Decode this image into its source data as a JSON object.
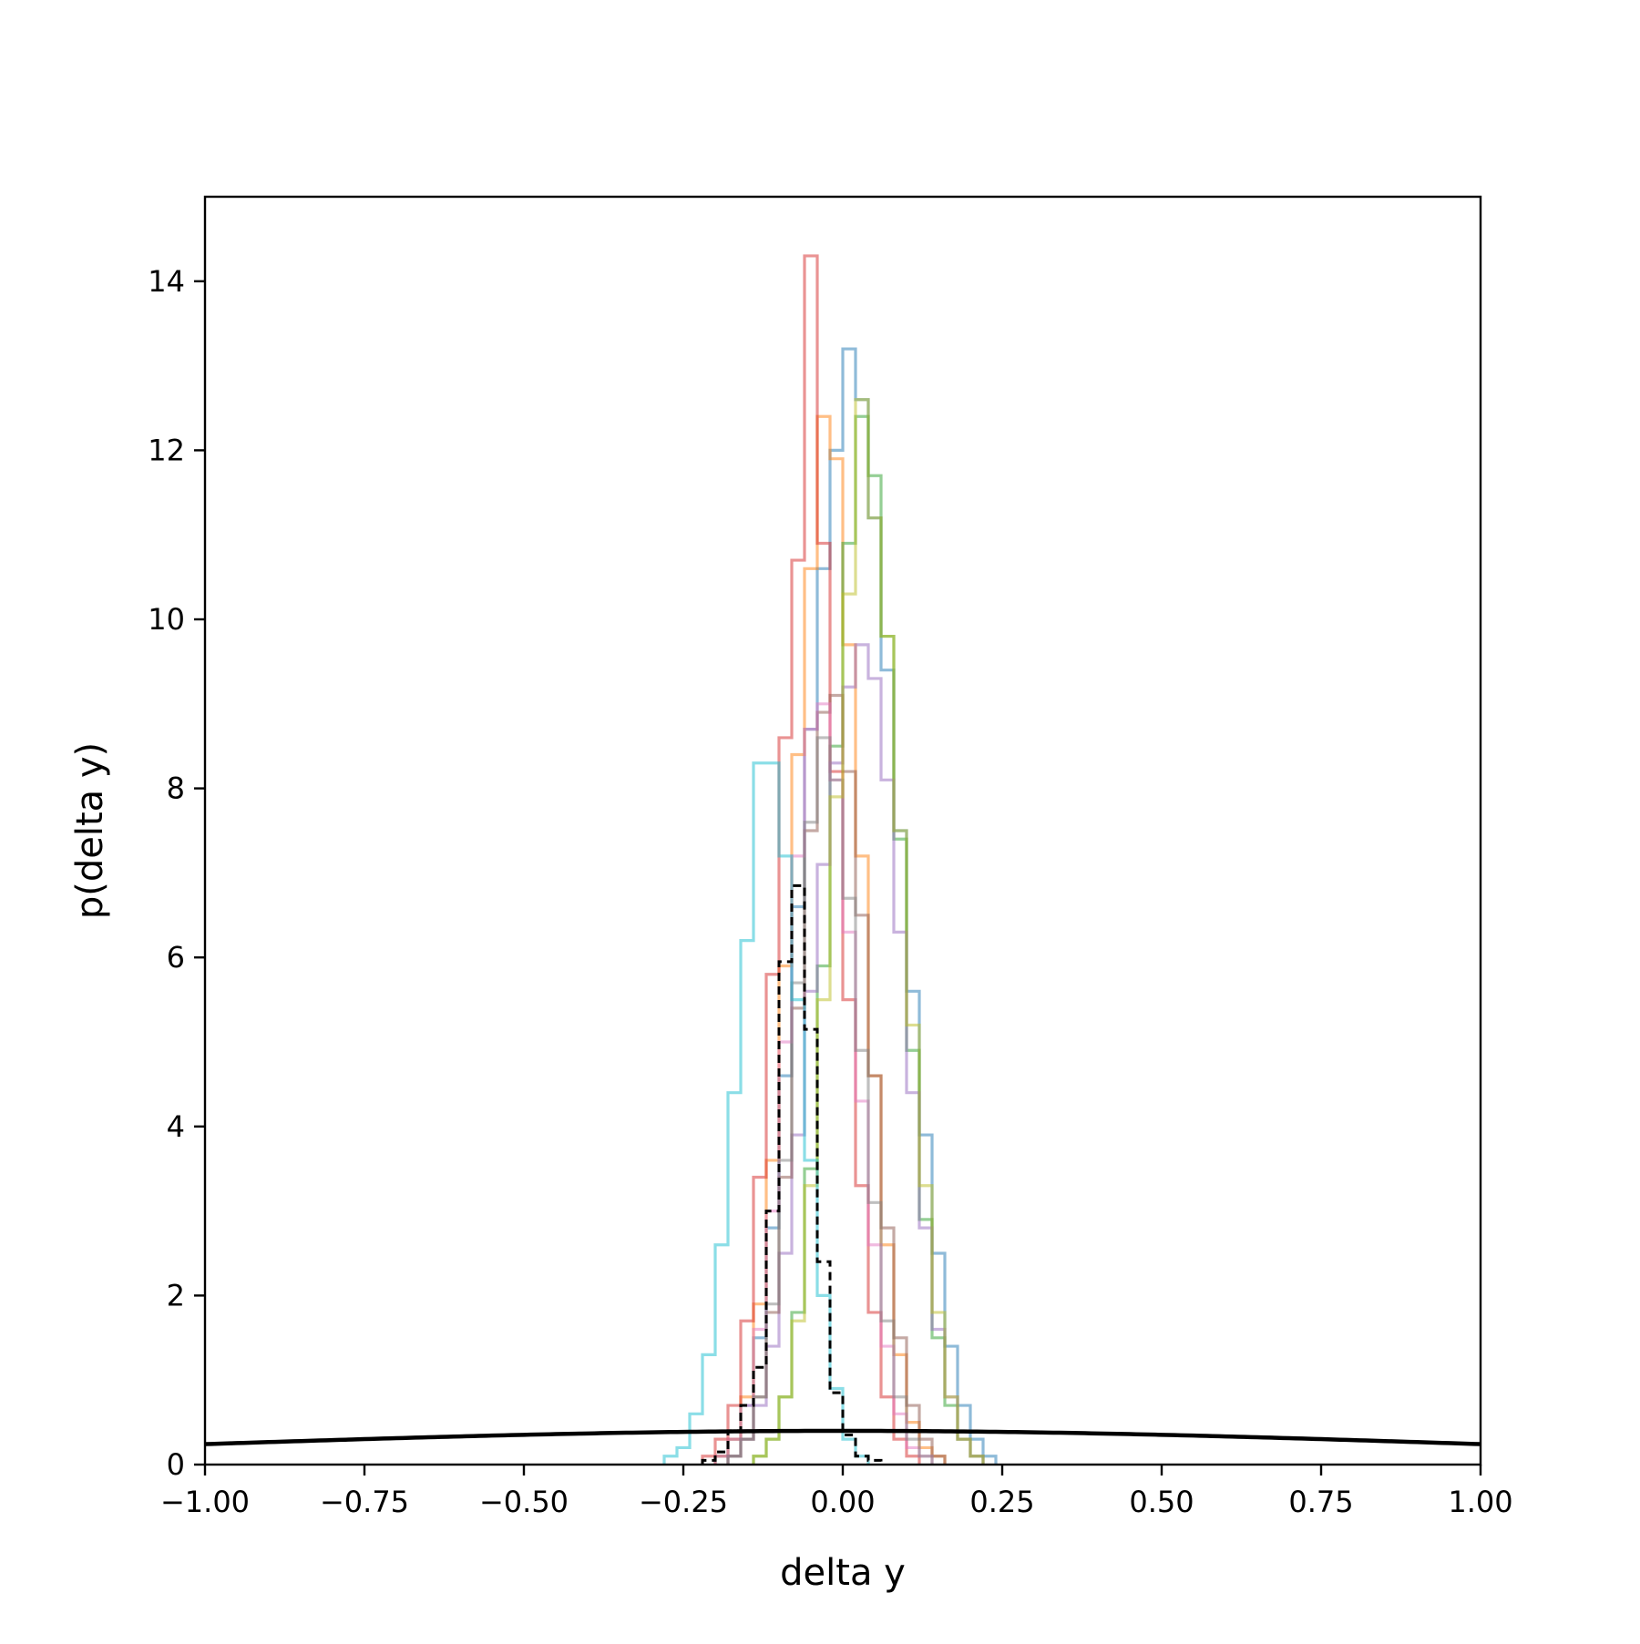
{
  "chart_data": {
    "type": "histogram",
    "title": "",
    "xlabel": "delta y",
    "ylabel": "p(delta y)",
    "xlim": [
      -1.0,
      1.0
    ],
    "ylim": [
      0,
      15
    ],
    "grid": false,
    "legend": "none",
    "xticks": [
      -1.0,
      -0.75,
      -0.5,
      -0.25,
      0.0,
      0.25,
      0.5,
      0.75,
      1.0
    ],
    "xtick_labels": [
      "−1.00",
      "−0.75",
      "−0.50",
      "−0.25",
      "0.00",
      "0.25",
      "0.50",
      "0.75",
      "1.00"
    ],
    "yticks": [
      0,
      2,
      4,
      6,
      8,
      10,
      12,
      14
    ],
    "ytick_labels": [
      "0",
      "2",
      "4",
      "6",
      "8",
      "10",
      "12",
      "14"
    ],
    "bin_width": 0.02,
    "series": [
      {
        "color": "#1f77b4",
        "style": "step",
        "opacity": 0.5,
        "bin_start": -0.2,
        "values": [
          0.1,
          0.3,
          0.7,
          1.5,
          2.8,
          4.6,
          6.6,
          8.7,
          10.6,
          12.0,
          13.2,
          12.6,
          11.2,
          9.4,
          7.5,
          5.6,
          3.9,
          2.5,
          1.4,
          0.7,
          0.3,
          0.1
        ]
      },
      {
        "color": "#ff7f0e",
        "style": "step",
        "opacity": 0.5,
        "bin_start": -0.2,
        "values": [
          0.1,
          0.3,
          0.8,
          1.9,
          3.6,
          5.9,
          8.4,
          10.6,
          12.4,
          11.9,
          9.7,
          7.2,
          4.6,
          2.6,
          1.3,
          0.5,
          0.2,
          0.1
        ]
      },
      {
        "color": "#2ca02c",
        "style": "step",
        "opacity": 0.5,
        "bin_start": -0.14,
        "values": [
          0.1,
          0.3,
          0.8,
          1.8,
          3.5,
          5.9,
          8.5,
          10.9,
          12.4,
          11.7,
          9.8,
          7.4,
          4.9,
          2.9,
          1.5,
          0.7,
          0.3,
          0.1
        ]
      },
      {
        "color": "#d62728",
        "style": "step",
        "opacity": 0.5,
        "bin_start": -0.22,
        "values": [
          0.1,
          0.3,
          0.7,
          1.7,
          3.4,
          5.8,
          8.6,
          10.7,
          14.3,
          10.9,
          8.2,
          5.5,
          3.3,
          1.8,
          0.8,
          0.3,
          0.1
        ]
      },
      {
        "color": "#9467bd",
        "style": "step",
        "opacity": 0.5,
        "bin_start": -0.18,
        "values": [
          0.1,
          0.3,
          0.7,
          1.4,
          2.5,
          3.9,
          5.6,
          7.1,
          8.3,
          9.2,
          9.7,
          9.3,
          8.1,
          6.3,
          4.4,
          2.8,
          1.6,
          0.8,
          0.3,
          0.1
        ]
      },
      {
        "color": "#8c564b",
        "style": "step",
        "opacity": 0.5,
        "bin_start": -0.18,
        "values": [
          0.1,
          0.3,
          0.8,
          1.8,
          3.4,
          5.4,
          7.5,
          8.9,
          9.1,
          8.2,
          6.5,
          4.6,
          2.8,
          1.5,
          0.7,
          0.3,
          0.1
        ]
      },
      {
        "color": "#e377c2",
        "style": "step",
        "opacity": 0.5,
        "bin_start": -0.2,
        "values": [
          0.1,
          0.3,
          0.7,
          1.6,
          3.0,
          5.0,
          7.2,
          8.7,
          9.0,
          8.1,
          6.3,
          4.3,
          2.6,
          1.4,
          0.6,
          0.2,
          0.1
        ]
      },
      {
        "color": "#7f7f7f",
        "style": "step",
        "opacity": 0.5,
        "bin_start": -0.18,
        "values": [
          0.1,
          0.3,
          0.8,
          1.9,
          3.6,
          5.7,
          7.6,
          8.6,
          8.1,
          6.7,
          4.9,
          3.1,
          1.7,
          0.8,
          0.3,
          0.1
        ]
      },
      {
        "color": "#bcbd22",
        "style": "step",
        "opacity": 0.5,
        "bin_start": -0.14,
        "values": [
          0.1,
          0.3,
          0.8,
          1.7,
          3.3,
          5.5,
          7.9,
          10.3,
          12.6,
          11.2,
          9.8,
          7.5,
          5.2,
          3.3,
          1.8,
          0.8,
          0.3,
          0.1
        ]
      },
      {
        "color": "#17becf",
        "style": "step",
        "opacity": 0.5,
        "bin_start": -0.28,
        "values": [
          0.1,
          0.2,
          0.6,
          1.3,
          2.6,
          4.4,
          6.2,
          8.3,
          8.3,
          7.2,
          5.5,
          3.6,
          2.0,
          0.9,
          0.3,
          0.1
        ]
      },
      {
        "color": "#000000",
        "style": "dashed-step",
        "opacity": 1.0,
        "bin_start": -0.22,
        "values": [
          0.05,
          0.15,
          0.4,
          0.7,
          1.15,
          3.0,
          5.95,
          6.85,
          5.15,
          2.4,
          0.85,
          0.35,
          0.1,
          0.05
        ]
      }
    ],
    "curve": {
      "type": "normal_pdf",
      "mean": 0.0,
      "std": 1.0,
      "color": "#000000"
    }
  }
}
